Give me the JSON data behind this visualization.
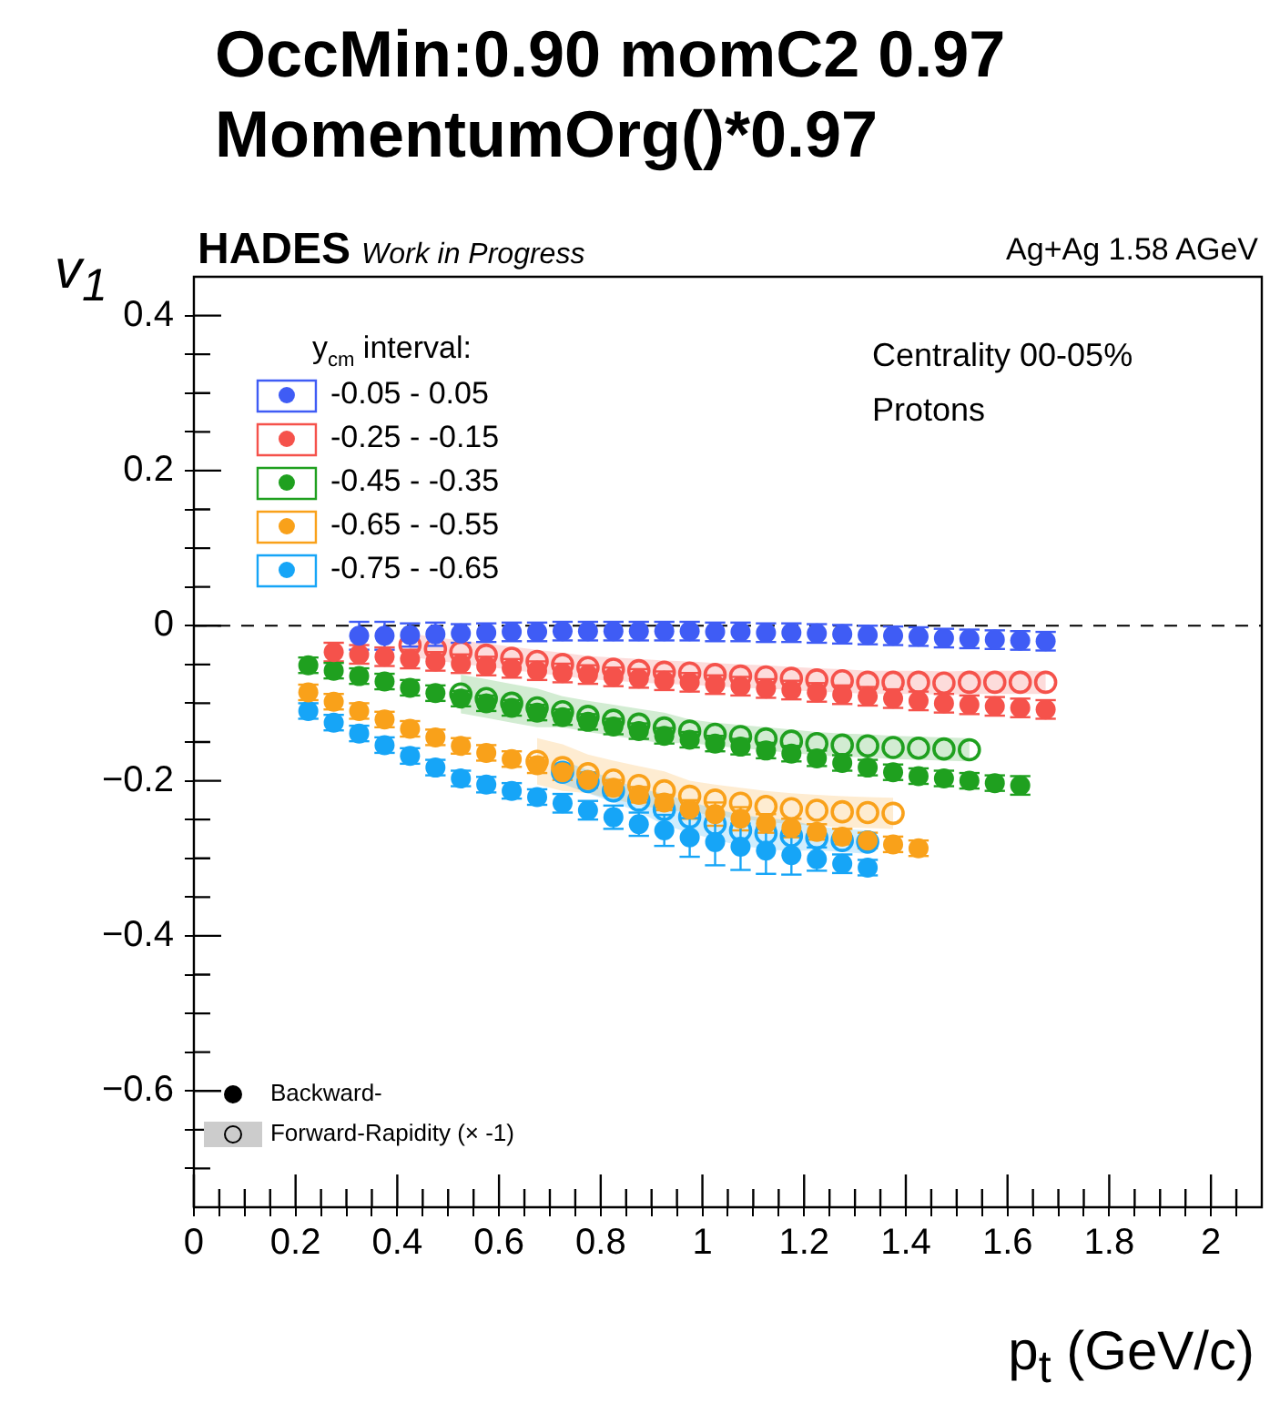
{
  "chart_data": {
    "type": "scatter",
    "title": "OccMin:0.90 momC2 0.97\nMomentumOrg()*0.97",
    "xlabel": "p$_{t}$ (GeV/c)",
    "ylabel": "v$_{1}$",
    "legend_title": "y$_{cm}$ interval:",
    "legend": "top left",
    "marker": "circle",
    "grid": false,
    "xlim": [
      0,
      2.1
    ],
    "ylim": [
      -0.75,
      0.45
    ],
    "xticks": [
      0,
      {
        "value": 0.05,
        "label": null
      },
      {
        "value": 0.1,
        "label": null
      },
      {
        "value": 0.15,
        "label": null
      },
      0.2,
      {
        "value": 0.25,
        "label": null
      },
      {
        "value": 0.3,
        "label": null
      },
      {
        "value": 0.35,
        "label": null
      },
      0.4,
      {
        "value": 0.45,
        "label": null
      },
      {
        "value": 0.5,
        "label": null
      },
      {
        "value": 0.55,
        "label": null
      },
      0.6,
      {
        "value": 0.65,
        "label": null
      },
      {
        "value": 0.7,
        "label": null
      },
      {
        "value": 0.75,
        "label": null
      },
      0.8,
      {
        "value": 0.85,
        "label": null
      },
      {
        "value": 0.9,
        "label": null
      },
      {
        "value": 0.95,
        "label": null
      },
      1,
      {
        "value": 1.05,
        "label": null
      },
      {
        "value": 1.1,
        "label": null
      },
      {
        "value": 1.15,
        "label": null
      },
      1.2,
      {
        "value": 1.25,
        "label": null
      },
      {
        "value": 1.3,
        "label": null
      },
      {
        "value": 1.35,
        "label": null
      },
      1.4,
      {
        "value": 1.45,
        "label": null
      },
      {
        "value": 1.5,
        "label": null
      },
      {
        "value": 1.55,
        "label": null
      },
      1.6,
      {
        "value": 1.65,
        "label": null
      },
      {
        "value": 1.7,
        "label": null
      },
      {
        "value": 1.75,
        "label": null
      },
      1.8,
      {
        "value": 1.85,
        "label": null
      },
      {
        "value": 1.9,
        "label": null
      },
      {
        "value": 1.95,
        "label": null
      },
      2,
      {
        "value": 2.05,
        "label": null
      }
    ],
    "yticks": [
      {
        "value": -0.7,
        "label": null
      },
      {
        "value": -0.65,
        "label": null
      },
      {
        "value": -0.6,
        "label": "−0.6"
      },
      {
        "value": -0.55,
        "label": null
      },
      {
        "value": -0.5,
        "label": null
      },
      {
        "value": -0.45,
        "label": null
      },
      {
        "value": -0.4,
        "label": "−0.4"
      },
      {
        "value": -0.35,
        "label": null
      },
      {
        "value": -0.3,
        "label": null
      },
      {
        "value": -0.25,
        "label": null
      },
      {
        "value": -0.2,
        "label": "−0.2"
      },
      {
        "value": -0.15,
        "label": null
      },
      {
        "value": -0.1,
        "label": null
      },
      {
        "value": -0.05,
        "label": null
      },
      0,
      {
        "value": 0.05,
        "label": null
      },
      {
        "value": 0.1,
        "label": null
      },
      {
        "value": 0.15,
        "label": null
      },
      0.2,
      {
        "value": 0.25,
        "label": null
      },
      {
        "value": 0.3,
        "label": null
      },
      {
        "value": 0.35,
        "label": null
      },
      0.4
    ],
    "ref_lines": [
      {
        "axis": "y",
        "value": 0,
        "color": "#000000",
        "line_style": "dashed"
      }
    ],
    "annotations": [
      "HADES",
      "Work in Progress",
      "Ag+Ag 1.58 AGeV",
      "Centrality 00-05%",
      "Protons",
      "Backward-",
      "Forward-Rapidity (× -1)"
    ],
    "series": [
      {
        "name": "-0.05 - 0.05",
        "color": "#3f5cf5",
        "x": [
          0.325,
          0.375,
          0.425,
          0.475,
          0.525,
          0.575,
          0.625,
          0.675,
          0.725,
          0.775,
          0.825,
          0.875,
          0.925,
          0.975,
          1.025,
          1.075,
          1.125,
          1.175,
          1.225,
          1.275,
          1.325,
          1.375,
          1.425,
          1.475,
          1.525,
          1.575,
          1.625,
          1.675
        ],
        "values": [
          -0.013,
          -0.013,
          -0.012,
          -0.011,
          -0.01,
          -0.009,
          -0.008,
          -0.008,
          -0.007,
          -0.007,
          -0.007,
          -0.007,
          -0.007,
          -0.007,
          -0.008,
          -0.008,
          -0.009,
          -0.009,
          -0.01,
          -0.011,
          -0.012,
          -0.013,
          -0.014,
          -0.016,
          -0.017,
          -0.018,
          -0.019,
          -0.02
        ],
        "errors": [
          0.018,
          0.018,
          0.015,
          0.015,
          0.012,
          0.012,
          0.012,
          0.012,
          0.012,
          0.012,
          0.012,
          0.012,
          0.012,
          0.012,
          0.012,
          0.012,
          0.012,
          0.012,
          0.012,
          0.012,
          0.012,
          0.012,
          0.012,
          0.012,
          0.012,
          0.012,
          0.012,
          0.012
        ]
      },
      {
        "name": "-0.25 - -0.15",
        "color": "#f5524b",
        "x": [
          0.275,
          0.325,
          0.375,
          0.425,
          0.475,
          0.525,
          0.575,
          0.625,
          0.675,
          0.725,
          0.775,
          0.825,
          0.875,
          0.925,
          0.975,
          1.025,
          1.075,
          1.125,
          1.175,
          1.225,
          1.275,
          1.325,
          1.375,
          1.425,
          1.475,
          1.525,
          1.575,
          1.625,
          1.675
        ],
        "values": [
          -0.034,
          -0.037,
          -0.04,
          -0.043,
          -0.046,
          -0.049,
          -0.052,
          -0.055,
          -0.058,
          -0.061,
          -0.063,
          -0.066,
          -0.068,
          -0.071,
          -0.073,
          -0.076,
          -0.078,
          -0.081,
          -0.083,
          -0.086,
          -0.089,
          -0.091,
          -0.094,
          -0.097,
          -0.1,
          -0.102,
          -0.104,
          -0.106,
          -0.108
        ],
        "errors": [
          0.012,
          0.012,
          0.012,
          0.012,
          0.012,
          0.012,
          0.012,
          0.012,
          0.012,
          0.012,
          0.012,
          0.012,
          0.012,
          0.012,
          0.012,
          0.012,
          0.012,
          0.012,
          0.012,
          0.012,
          0.012,
          0.012,
          0.012,
          0.012,
          0.012,
          0.012,
          0.012,
          0.012,
          0.012
        ]
      },
      {
        "name": "-0.45 - -0.35",
        "color": "#1fa01f",
        "x": [
          0.225,
          0.275,
          0.325,
          0.375,
          0.425,
          0.475,
          0.525,
          0.575,
          0.625,
          0.675,
          0.725,
          0.775,
          0.825,
          0.875,
          0.925,
          0.975,
          1.025,
          1.075,
          1.125,
          1.175,
          1.225,
          1.275,
          1.325,
          1.375,
          1.425,
          1.475,
          1.525,
          1.575,
          1.625
        ],
        "values": [
          -0.051,
          -0.058,
          -0.065,
          -0.072,
          -0.08,
          -0.087,
          -0.094,
          -0.1,
          -0.106,
          -0.112,
          -0.118,
          -0.124,
          -0.13,
          -0.136,
          -0.142,
          -0.147,
          -0.152,
          -0.156,
          -0.161,
          -0.165,
          -0.171,
          -0.177,
          -0.183,
          -0.189,
          -0.194,
          -0.197,
          -0.2,
          -0.203,
          -0.206
        ],
        "errors": [
          0.01,
          0.01,
          0.01,
          0.01,
          0.01,
          0.01,
          0.01,
          0.01,
          0.01,
          0.01,
          0.01,
          0.01,
          0.01,
          0.01,
          0.01,
          0.01,
          0.01,
          0.01,
          0.01,
          0.01,
          0.01,
          0.01,
          0.01,
          0.01,
          0.01,
          0.01,
          0.01,
          0.01,
          0.012
        ]
      },
      {
        "name": "-0.65 - -0.55",
        "color": "#f9a11a",
        "x": [
          0.225,
          0.275,
          0.325,
          0.375,
          0.425,
          0.475,
          0.525,
          0.575,
          0.625,
          0.675,
          0.725,
          0.775,
          0.825,
          0.875,
          0.925,
          0.975,
          1.025,
          1.075,
          1.125,
          1.175,
          1.225,
          1.275,
          1.325,
          1.375,
          1.425
        ],
        "values": [
          -0.086,
          -0.098,
          -0.11,
          -0.121,
          -0.133,
          -0.144,
          -0.155,
          -0.164,
          -0.172,
          -0.18,
          -0.189,
          -0.199,
          -0.209,
          -0.218,
          -0.228,
          -0.237,
          -0.243,
          -0.249,
          -0.255,
          -0.261,
          -0.266,
          -0.272,
          -0.277,
          -0.282,
          -0.287
        ],
        "errors": [
          0.01,
          0.01,
          0.01,
          0.01,
          0.01,
          0.01,
          0.01,
          0.01,
          0.01,
          0.01,
          0.01,
          0.01,
          0.01,
          0.01,
          0.01,
          0.012,
          0.015,
          0.015,
          0.012,
          0.012,
          0.01,
          0.01,
          0.01,
          0.01,
          0.01
        ]
      },
      {
        "name": "-0.75 - -0.65",
        "color": "#16a5f7",
        "x": [
          0.225,
          0.275,
          0.325,
          0.375,
          0.425,
          0.475,
          0.525,
          0.575,
          0.625,
          0.675,
          0.725,
          0.775,
          0.825,
          0.875,
          0.925,
          0.975,
          1.025,
          1.075,
          1.125,
          1.175,
          1.225,
          1.275,
          1.325
        ],
        "values": [
          -0.11,
          -0.125,
          -0.139,
          -0.154,
          -0.168,
          -0.183,
          -0.197,
          -0.205,
          -0.213,
          -0.221,
          -0.229,
          -0.238,
          -0.247,
          -0.256,
          -0.264,
          -0.273,
          -0.279,
          -0.285,
          -0.29,
          -0.296,
          -0.301,
          -0.307,
          -0.312
        ],
        "errors": [
          0.01,
          0.01,
          0.01,
          0.01,
          0.01,
          0.01,
          0.01,
          0.01,
          0.01,
          0.01,
          0.012,
          0.012,
          0.015,
          0.015,
          0.02,
          0.025,
          0.03,
          0.03,
          0.03,
          0.025,
          0.015,
          0.012,
          0.01
        ]
      },
      {
        "color": "#f5524b",
        "x": [
          0.425,
          0.475,
          0.525,
          0.575,
          0.625,
          0.675,
          0.725,
          0.775,
          0.825,
          0.875,
          0.925,
          0.975,
          1.025,
          1.075,
          1.125,
          1.175,
          1.225,
          1.275,
          1.325,
          1.375,
          1.425,
          1.475,
          1.525,
          1.575,
          1.625,
          1.675
        ],
        "values": [
          -0.025,
          -0.03,
          -0.034,
          -0.038,
          -0.042,
          -0.046,
          -0.05,
          -0.054,
          -0.056,
          -0.058,
          -0.06,
          -0.061,
          -0.063,
          -0.065,
          -0.066,
          -0.068,
          -0.07,
          -0.071,
          -0.073,
          -0.073,
          -0.073,
          -0.074,
          -0.073,
          -0.073,
          -0.073,
          -0.073
        ],
        "lower": [
          -0.04,
          -0.045,
          -0.049,
          -0.053,
          -0.057,
          -0.061,
          -0.065,
          -0.069,
          -0.071,
          -0.073,
          -0.075,
          -0.076,
          -0.078,
          -0.08,
          -0.081,
          -0.083,
          -0.085,
          -0.086,
          -0.088,
          -0.088,
          -0.088,
          -0.089,
          -0.088,
          -0.088,
          -0.088,
          -0.088
        ],
        "upper": [
          -0.01,
          -0.015,
          -0.019,
          -0.023,
          -0.027,
          -0.031,
          -0.035,
          -0.039,
          -0.041,
          -0.043,
          -0.045,
          -0.046,
          -0.048,
          -0.05,
          -0.051,
          -0.053,
          -0.055,
          -0.056,
          -0.058,
          -0.058,
          -0.058,
          -0.059,
          -0.058,
          -0.058,
          -0.058,
          -0.058
        ]
      },
      {
        "color": "#1fa01f",
        "x": [
          0.525,
          0.575,
          0.625,
          0.675,
          0.725,
          0.775,
          0.825,
          0.875,
          0.925,
          0.975,
          1.025,
          1.075,
          1.125,
          1.175,
          1.225,
          1.275,
          1.325,
          1.375,
          1.425,
          1.475,
          1.525
        ],
        "values": [
          -0.088,
          -0.094,
          -0.1,
          -0.106,
          -0.111,
          -0.117,
          -0.122,
          -0.127,
          -0.132,
          -0.136,
          -0.14,
          -0.143,
          -0.146,
          -0.149,
          -0.152,
          -0.154,
          -0.155,
          -0.157,
          -0.158,
          -0.159,
          -0.16
        ],
        "lower": [
          -0.113,
          -0.119,
          -0.125,
          -0.131,
          -0.131,
          -0.137,
          -0.142,
          -0.147,
          -0.152,
          -0.151,
          -0.155,
          -0.158,
          -0.161,
          -0.164,
          -0.167,
          -0.169,
          -0.17,
          -0.172,
          -0.173,
          -0.174,
          -0.175
        ],
        "upper": [
          -0.063,
          -0.069,
          -0.075,
          -0.081,
          -0.091,
          -0.097,
          -0.102,
          -0.107,
          -0.112,
          -0.121,
          -0.125,
          -0.128,
          -0.131,
          -0.134,
          -0.137,
          -0.139,
          -0.14,
          -0.142,
          -0.143,
          -0.144,
          -0.145
        ]
      },
      {
        "color": "#f9a11a",
        "x": [
          0.675,
          0.725,
          0.775,
          0.825,
          0.875,
          0.925,
          0.975,
          1.025,
          1.075,
          1.125,
          1.175,
          1.225,
          1.275,
          1.325,
          1.375
        ],
        "values": [
          -0.175,
          -0.183,
          -0.191,
          -0.199,
          -0.206,
          -0.213,
          -0.22,
          -0.225,
          -0.229,
          -0.233,
          -0.236,
          -0.238,
          -0.24,
          -0.241,
          -0.242
        ],
        "lower": [
          -0.205,
          -0.213,
          -0.216,
          -0.224,
          -0.231,
          -0.238,
          -0.24,
          -0.245,
          -0.249,
          -0.253,
          -0.256,
          -0.258,
          -0.26,
          -0.261,
          -0.262
        ],
        "upper": [
          -0.145,
          -0.153,
          -0.166,
          -0.174,
          -0.181,
          -0.188,
          -0.2,
          -0.205,
          -0.209,
          -0.213,
          -0.216,
          -0.218,
          -0.22,
          -0.221,
          -0.222
        ]
      },
      {
        "color": "#16a5f7",
        "x": [
          0.725,
          0.775,
          0.825,
          0.875,
          0.925,
          0.975,
          1.025,
          1.075,
          1.125,
          1.175,
          1.225,
          1.275,
          1.325
        ],
        "values": [
          -0.189,
          -0.201,
          -0.213,
          -0.225,
          -0.237,
          -0.247,
          -0.256,
          -0.264,
          -0.268,
          -0.271,
          -0.274,
          -0.277,
          -0.279
        ],
        "lower": [
          -0.204,
          -0.216,
          -0.228,
          -0.24,
          -0.257,
          -0.267,
          -0.276,
          -0.284,
          -0.288,
          -0.291,
          -0.289,
          -0.292,
          -0.294
        ],
        "upper": [
          -0.174,
          -0.186,
          -0.198,
          -0.21,
          -0.217,
          -0.227,
          -0.236,
          -0.244,
          -0.248,
          -0.251,
          -0.259,
          -0.262,
          -0.264
        ]
      }
    ]
  }
}
